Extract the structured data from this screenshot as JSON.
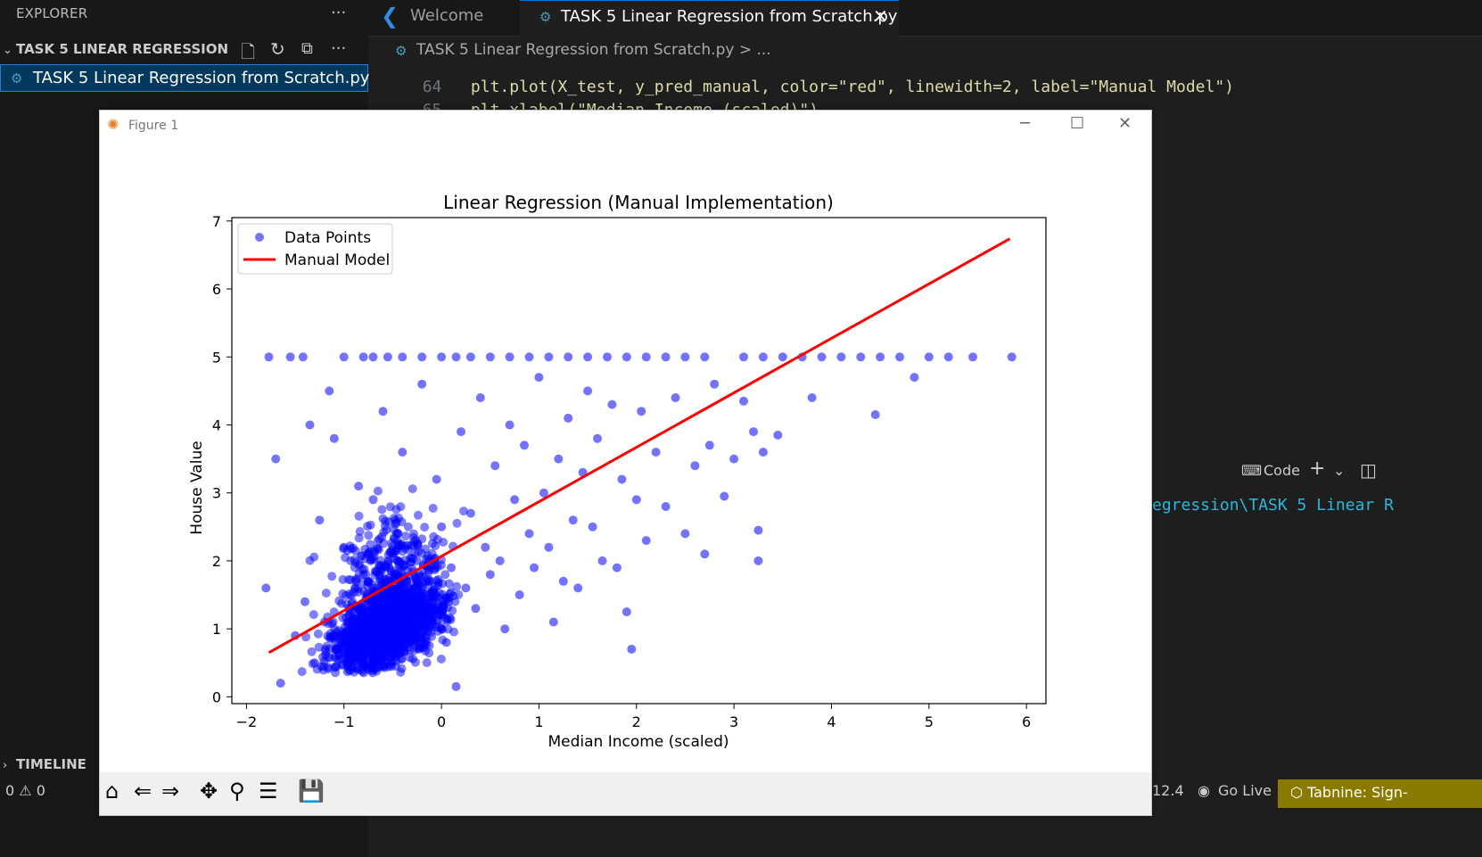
{
  "explorer": {
    "title": "EXPLORER",
    "more": "···",
    "section_title": "TASK 5 LINEAR REGRESSION",
    "section_more": "···",
    "file": "TASK 5 Linear Regression from Scratch.py",
    "timeline": "TIMELINE"
  },
  "tabs": {
    "welcome": "Welcome",
    "active": "TASK 5 Linear Regression from Scratch.py",
    "close": "✕"
  },
  "breadcrumb": "TASK 5 Linear Regression from Scratch.py > ...",
  "code_lines": [
    {
      "num": "64",
      "text": "plt.plot(X_test, y_pred_manual, color=\"red\", linewidth=2, label=\"Manual Model\")"
    },
    {
      "num": "65",
      "text": "plt.xlabel(\"Median Income (scaled)\")"
    }
  ],
  "terminal": {
    "code_label": "Code",
    "path_fragment": "egression\\TASK 5 Linear R"
  },
  "status_bar": {
    "problems": "0 ⚠ 0",
    "position_fragment": "12.4",
    "go_live": "Go Live",
    "tabnine": "Tabnine: Sign-"
  },
  "figure": {
    "window_title": "Figure 1"
  },
  "colors": {
    "points": "#0000ff",
    "line": "#ff0000",
    "accent": "#0078d4",
    "tabnine_bg": "#8a7a00"
  },
  "chart_data": {
    "type": "scatter",
    "title": "Linear Regression (Manual Implementation)",
    "xlabel": "Median Income (scaled)",
    "ylabel": "House Value",
    "xlim": [
      -2.15,
      6.2
    ],
    "ylim": [
      -0.1,
      7.05
    ],
    "xticks": [
      -2,
      -1,
      0,
      1,
      2,
      3,
      4,
      5,
      6
    ],
    "yticks": [
      0,
      1,
      2,
      3,
      4,
      5,
      6,
      7
    ],
    "xtick_labels": [
      "−2",
      "−1",
      "0",
      "1",
      "2",
      "3",
      "4",
      "5",
      "6"
    ],
    "ytick_labels": [
      "0",
      "1",
      "2",
      "3",
      "4",
      "5",
      "6",
      "7"
    ],
    "legend": {
      "placement": "upper-left",
      "entries": [
        "Data Points",
        "Manual Model"
      ]
    },
    "grid": false,
    "series": [
      {
        "name": "Data Points",
        "kind": "scatter",
        "points": [
          [
            -1.77,
            5.0
          ],
          [
            -1.55,
            5.0
          ],
          [
            -1.42,
            5.0
          ],
          [
            -1.0,
            5.0
          ],
          [
            -0.8,
            5.0
          ],
          [
            -0.7,
            5.0
          ],
          [
            -0.55,
            5.0
          ],
          [
            -0.4,
            5.0
          ],
          [
            -0.2,
            5.0
          ],
          [
            0.0,
            5.0
          ],
          [
            0.15,
            5.0
          ],
          [
            0.3,
            5.0
          ],
          [
            0.5,
            5.0
          ],
          [
            0.7,
            5.0
          ],
          [
            0.9,
            5.0
          ],
          [
            1.1,
            5.0
          ],
          [
            1.3,
            5.0
          ],
          [
            1.5,
            5.0
          ],
          [
            1.7,
            5.0
          ],
          [
            1.9,
            5.0
          ],
          [
            2.1,
            5.0
          ],
          [
            2.3,
            5.0
          ],
          [
            2.5,
            5.0
          ],
          [
            2.7,
            5.0
          ],
          [
            3.1,
            5.0
          ],
          [
            3.3,
            5.0
          ],
          [
            3.5,
            5.0
          ],
          [
            3.7,
            5.0
          ],
          [
            3.9,
            5.0
          ],
          [
            4.1,
            5.0
          ],
          [
            4.3,
            5.0
          ],
          [
            4.5,
            5.0
          ],
          [
            4.7,
            5.0
          ],
          [
            5.0,
            5.0
          ],
          [
            5.2,
            5.0
          ],
          [
            5.45,
            5.0
          ],
          [
            5.85,
            5.0
          ],
          [
            -1.8,
            1.6
          ],
          [
            -1.7,
            3.5
          ],
          [
            -1.65,
            0.2
          ],
          [
            -1.5,
            0.9
          ],
          [
            -1.4,
            1.4
          ],
          [
            -1.35,
            4.0
          ],
          [
            -1.3,
            0.5
          ],
          [
            -1.25,
            2.6
          ],
          [
            -1.2,
            1.1
          ],
          [
            -1.15,
            4.5
          ],
          [
            -1.1,
            3.8
          ],
          [
            -1.05,
            0.6
          ],
          [
            -1.0,
            2.2
          ],
          [
            -0.95,
            1.3
          ],
          [
            -0.9,
            0.8
          ],
          [
            -0.85,
            3.1
          ],
          [
            -0.8,
            1.8
          ],
          [
            -0.75,
            0.4
          ],
          [
            -0.7,
            2.9
          ],
          [
            -0.65,
            1.0
          ],
          [
            -0.6,
            4.2
          ],
          [
            -0.55,
            1.5
          ],
          [
            -0.5,
            0.7
          ],
          [
            -0.45,
            2.4
          ],
          [
            -0.4,
            3.6
          ],
          [
            -0.35,
            1.2
          ],
          [
            -0.3,
            0.9
          ],
          [
            -0.25,
            2.0
          ],
          [
            -0.2,
            4.6
          ],
          [
            -0.15,
            1.7
          ],
          [
            -0.1,
            1.1
          ],
          [
            -0.05,
            3.2
          ],
          [
            0.0,
            2.5
          ],
          [
            0.05,
            0.8
          ],
          [
            0.1,
            1.9
          ],
          [
            0.15,
            0.15
          ],
          [
            0.2,
            3.9
          ],
          [
            0.25,
            1.6
          ],
          [
            0.3,
            2.7
          ],
          [
            0.35,
            1.3
          ],
          [
            0.4,
            4.4
          ],
          [
            0.45,
            2.2
          ],
          [
            0.5,
            1.8
          ],
          [
            0.55,
            3.4
          ],
          [
            0.6,
            2.0
          ],
          [
            0.65,
            1.0
          ],
          [
            0.7,
            4.0
          ],
          [
            0.75,
            2.9
          ],
          [
            0.8,
            1.5
          ],
          [
            0.85,
            3.7
          ],
          [
            0.9,
            2.4
          ],
          [
            0.95,
            1.9
          ],
          [
            1.0,
            4.7
          ],
          [
            1.05,
            3.0
          ],
          [
            1.1,
            2.2
          ],
          [
            1.15,
            1.1
          ],
          [
            1.2,
            3.5
          ],
          [
            1.25,
            1.7
          ],
          [
            1.3,
            4.1
          ],
          [
            1.35,
            2.6
          ],
          [
            1.4,
            1.6
          ],
          [
            1.45,
            3.3
          ],
          [
            1.5,
            4.5
          ],
          [
            1.55,
            2.5
          ],
          [
            1.6,
            3.8
          ],
          [
            1.65,
            2.0
          ],
          [
            1.75,
            4.3
          ],
          [
            1.8,
            1.9
          ],
          [
            1.85,
            3.2
          ],
          [
            1.9,
            1.25
          ],
          [
            1.95,
            0.7
          ],
          [
            2.0,
            2.9
          ],
          [
            2.05,
            4.2
          ],
          [
            2.1,
            2.3
          ],
          [
            2.2,
            3.6
          ],
          [
            2.3,
            2.8
          ],
          [
            2.4,
            4.4
          ],
          [
            2.5,
            2.4
          ],
          [
            2.6,
            3.4
          ],
          [
            2.7,
            2.1
          ],
          [
            2.75,
            3.7
          ],
          [
            2.8,
            4.6
          ],
          [
            2.9,
            2.95
          ],
          [
            3.0,
            3.5
          ],
          [
            3.1,
            4.35
          ],
          [
            3.2,
            3.9
          ],
          [
            3.25,
            2.0
          ],
          [
            3.25,
            2.45
          ],
          [
            3.3,
            3.6
          ],
          [
            3.45,
            3.85
          ],
          [
            3.8,
            4.4
          ],
          [
            4.45,
            4.15
          ],
          [
            4.85,
            4.7
          ]
        ],
        "dense_cluster": {
          "center": [
            -0.6,
            1.2
          ],
          "extent_x": [
            -1.7,
            0.8
          ],
          "extent_y": [
            0.35,
            3.0
          ]
        }
      },
      {
        "name": "Manual Model",
        "kind": "line",
        "x": [
          -1.77,
          5.83
        ],
        "y": [
          0.65,
          6.74
        ]
      }
    ]
  }
}
